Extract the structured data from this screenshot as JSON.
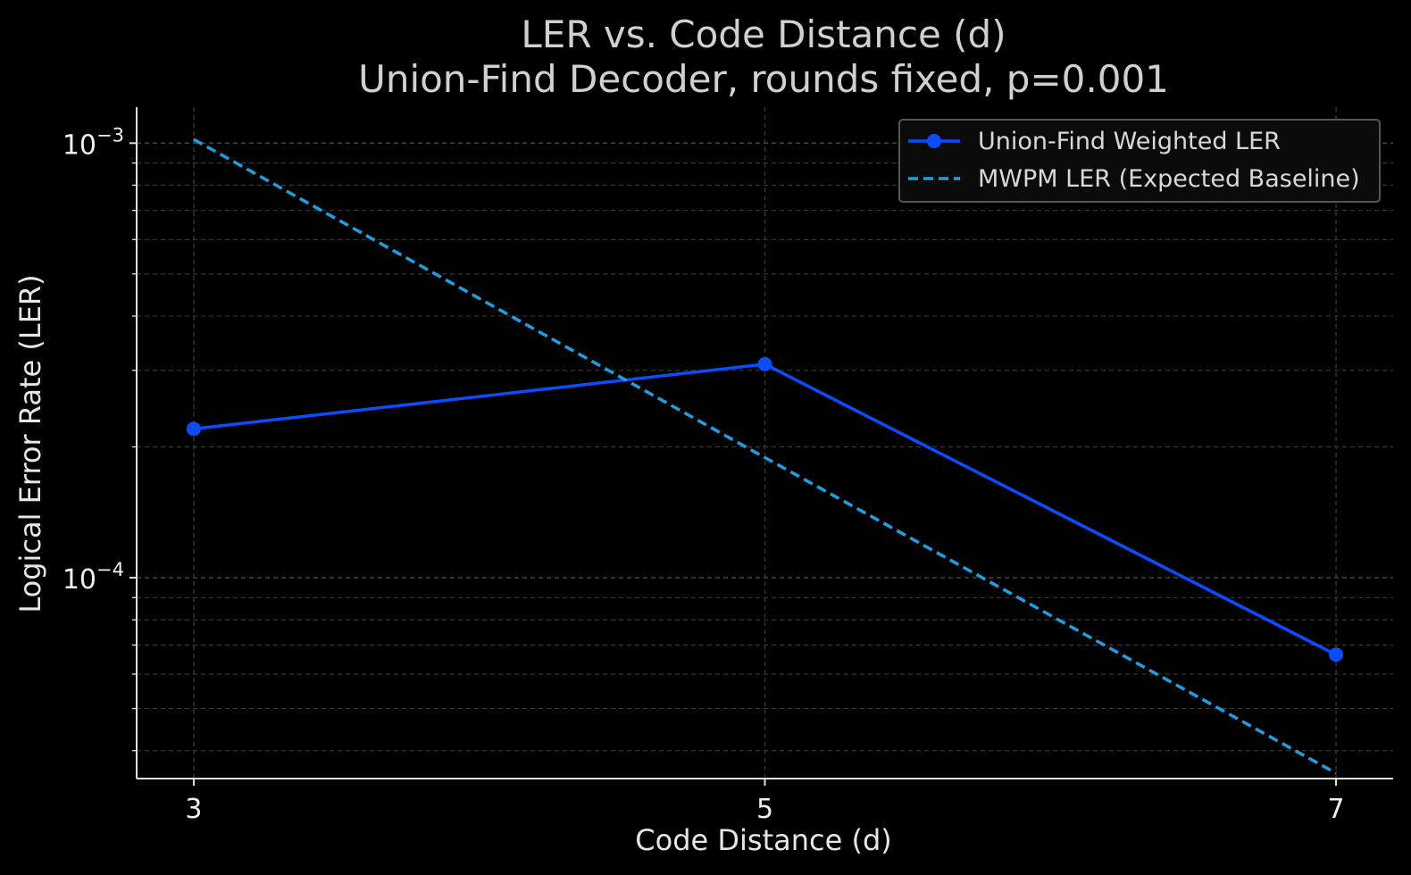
{
  "chart_data": {
    "type": "line",
    "title": "LER vs. Code Distance (d)",
    "subtitle": "Union-Find Decoder, rounds fixed, p=0.001",
    "xlabel": "Code Distance (d)",
    "ylabel": "Logical Error Rate (LER)",
    "x": [
      3,
      5,
      7
    ],
    "x_tick_labels": [
      "3",
      "5",
      "7"
    ],
    "y_scale": "log",
    "ylim": [
      3.45e-05,
      0.00121
    ],
    "y_ticks": [
      {
        "value": 0.001,
        "base": "10",
        "exponent": "−3"
      },
      {
        "value": 0.0001,
        "base": "10",
        "exponent": "−4"
      }
    ],
    "grid": true,
    "legend_position": "top-right",
    "series": [
      {
        "name": "Union-Find Weighted LER",
        "values": [
          0.00022,
          0.00031,
          6.65e-05
        ],
        "color": "#0a4dff",
        "style": "solid",
        "marker": "circle"
      },
      {
        "name": "MWPM LER (Expected Baseline)",
        "values": [
          0.00102,
          0.000189,
          3.55e-05
        ],
        "color": "#1f9fe0",
        "style": "dashed",
        "marker": "none"
      }
    ]
  },
  "colors": {
    "background": "#000000",
    "axis": "#e0e0e0",
    "grid": "#3a3a3a"
  }
}
